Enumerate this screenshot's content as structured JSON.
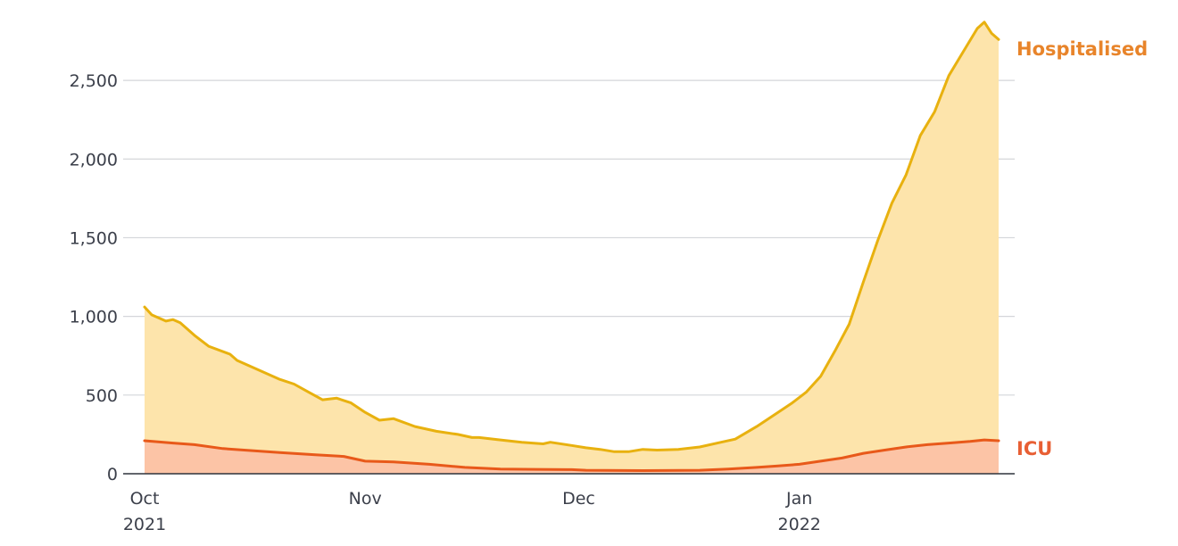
{
  "chart_data": {
    "type": "area",
    "title": "",
    "xlabel": "",
    "ylabel": "",
    "ylim": [
      0,
      2900
    ],
    "yticks": [
      0,
      500,
      1000,
      1500,
      2000,
      2500
    ],
    "ytick_labels": [
      "0",
      "500",
      "1,000",
      "1,500",
      "2,000",
      "2,500"
    ],
    "xticks": [
      {
        "date": "2021-10-01",
        "label": "Oct",
        "sublabel": "2021"
      },
      {
        "date": "2021-11-01",
        "label": "Nov",
        "sublabel": ""
      },
      {
        "date": "2021-12-01",
        "label": "Dec",
        "sublabel": ""
      },
      {
        "date": "2022-01-01",
        "label": "Jan",
        "sublabel": "2022"
      }
    ],
    "grid": true,
    "series": [
      {
        "name": "Hospitalised",
        "color": "#e8b10f",
        "fill": "#fde4ab",
        "label_color": "#e8842a",
        "points": [
          [
            "2021-10-01",
            1060
          ],
          [
            "2021-10-02",
            1010
          ],
          [
            "2021-10-04",
            970
          ],
          [
            "2021-10-05",
            980
          ],
          [
            "2021-10-06",
            960
          ],
          [
            "2021-10-08",
            880
          ],
          [
            "2021-10-10",
            810
          ],
          [
            "2021-10-13",
            760
          ],
          [
            "2021-10-14",
            720
          ],
          [
            "2021-10-17",
            660
          ],
          [
            "2021-10-20",
            600
          ],
          [
            "2021-10-22",
            570
          ],
          [
            "2021-10-24",
            520
          ],
          [
            "2021-10-26",
            470
          ],
          [
            "2021-10-28",
            480
          ],
          [
            "2021-10-30",
            450
          ],
          [
            "2021-11-01",
            390
          ],
          [
            "2021-11-03",
            340
          ],
          [
            "2021-11-05",
            350
          ],
          [
            "2021-11-08",
            300
          ],
          [
            "2021-11-11",
            270
          ],
          [
            "2021-11-14",
            250
          ],
          [
            "2021-11-16",
            230
          ],
          [
            "2021-11-17",
            230
          ],
          [
            "2021-11-20",
            215
          ],
          [
            "2021-11-23",
            200
          ],
          [
            "2021-11-26",
            190
          ],
          [
            "2021-11-27",
            200
          ],
          [
            "2021-11-30",
            180
          ],
          [
            "2021-12-02",
            165
          ],
          [
            "2021-12-04",
            155
          ],
          [
            "2021-12-06",
            140
          ],
          [
            "2021-12-08",
            140
          ],
          [
            "2021-12-10",
            155
          ],
          [
            "2021-12-12",
            150
          ],
          [
            "2021-12-15",
            155
          ],
          [
            "2021-12-18",
            170
          ],
          [
            "2021-12-21",
            200
          ],
          [
            "2021-12-23",
            220
          ],
          [
            "2021-12-26",
            300
          ],
          [
            "2021-12-29",
            390
          ],
          [
            "2021-12-31",
            450
          ],
          [
            "2022-01-02",
            520
          ],
          [
            "2022-01-04",
            620
          ],
          [
            "2022-01-06",
            780
          ],
          [
            "2022-01-08",
            950
          ],
          [
            "2022-01-10",
            1220
          ],
          [
            "2022-01-12",
            1480
          ],
          [
            "2022-01-14",
            1720
          ],
          [
            "2022-01-16",
            1900
          ],
          [
            "2022-01-18",
            2150
          ],
          [
            "2022-01-20",
            2300
          ],
          [
            "2022-01-22",
            2530
          ],
          [
            "2022-01-24",
            2680
          ],
          [
            "2022-01-26",
            2830
          ],
          [
            "2022-01-27",
            2870
          ],
          [
            "2022-01-28",
            2800
          ],
          [
            "2022-01-29",
            2760
          ]
        ]
      },
      {
        "name": "ICU",
        "color": "#e8591a",
        "fill": "#fcc4a6",
        "label_color": "#e85f34",
        "points": [
          [
            "2021-10-01",
            210
          ],
          [
            "2021-10-05",
            195
          ],
          [
            "2021-10-08",
            185
          ],
          [
            "2021-10-12",
            160
          ],
          [
            "2021-10-15",
            150
          ],
          [
            "2021-10-20",
            135
          ],
          [
            "2021-10-25",
            120
          ],
          [
            "2021-10-29",
            110
          ],
          [
            "2021-11-01",
            80
          ],
          [
            "2021-11-05",
            75
          ],
          [
            "2021-11-10",
            60
          ],
          [
            "2021-11-15",
            40
          ],
          [
            "2021-11-20",
            30
          ],
          [
            "2021-11-25",
            28
          ],
          [
            "2021-11-30",
            26
          ],
          [
            "2021-12-02",
            22
          ],
          [
            "2021-12-10",
            20
          ],
          [
            "2021-12-18",
            22
          ],
          [
            "2021-12-22",
            30
          ],
          [
            "2021-12-26",
            40
          ],
          [
            "2021-12-29",
            50
          ],
          [
            "2022-01-01",
            60
          ],
          [
            "2022-01-04",
            80
          ],
          [
            "2022-01-07",
            100
          ],
          [
            "2022-01-10",
            130
          ],
          [
            "2022-01-13",
            150
          ],
          [
            "2022-01-16",
            170
          ],
          [
            "2022-01-19",
            185
          ],
          [
            "2022-01-22",
            195
          ],
          [
            "2022-01-25",
            205
          ],
          [
            "2022-01-27",
            215
          ],
          [
            "2022-01-29",
            210
          ]
        ]
      }
    ],
    "end_labels": [
      "Hospitalised",
      "ICU"
    ]
  }
}
